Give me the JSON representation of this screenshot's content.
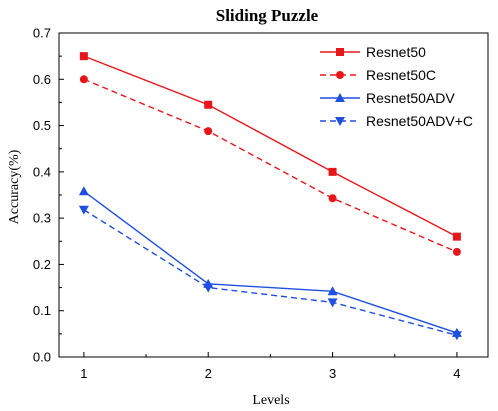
{
  "chart_data": {
    "type": "line",
    "title": "Sliding Puzzle",
    "xlabel": "Levels",
    "ylabel": "Accuracy(%)",
    "x": [
      1,
      2,
      3,
      4
    ],
    "xlim": [
      0.8,
      4.25
    ],
    "ylim": [
      0,
      0.7
    ],
    "yticks": [
      "0.0",
      "0.1",
      "0.2",
      "0.3",
      "0.4",
      "0.5",
      "0.6",
      "0.7"
    ],
    "xticks": [
      "1",
      "2",
      "3",
      "4"
    ],
    "grid": false,
    "legend_position": "top-right",
    "series": [
      {
        "name": "Resnet50",
        "values": [
          0.65,
          0.545,
          0.4,
          0.26
        ],
        "color": "#e8161b",
        "dash": "solid",
        "marker": "square"
      },
      {
        "name": "Resnet50C",
        "values": [
          0.6,
          0.488,
          0.343,
          0.227
        ],
        "color": "#e8161b",
        "dash": "dashed",
        "marker": "circle"
      },
      {
        "name": "Resnet50ADV",
        "values": [
          0.358,
          0.158,
          0.142,
          0.052
        ],
        "color": "#1f4fe0",
        "dash": "solid",
        "marker": "triangle-up"
      },
      {
        "name": "Resnet50ADV+C",
        "values": [
          0.318,
          0.15,
          0.118,
          0.047
        ],
        "color": "#1f4fe0",
        "dash": "dashed",
        "marker": "triangle-down"
      }
    ]
  }
}
